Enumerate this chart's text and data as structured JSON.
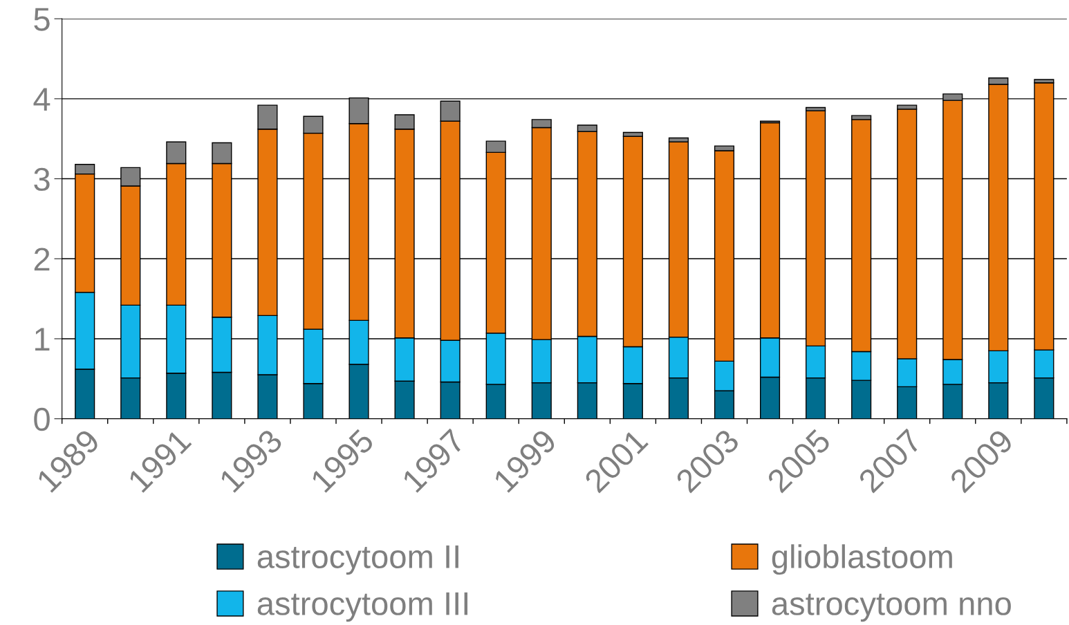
{
  "chart_data": {
    "type": "bar",
    "stacked": true,
    "categories": [
      "1989",
      null,
      "1991",
      null,
      "1993",
      null,
      "1995",
      null,
      "1997",
      null,
      "1999",
      null,
      "2001",
      null,
      "2003",
      null,
      "2005",
      null,
      "2007",
      null,
      "2009",
      null
    ],
    "series": [
      {
        "name": "astrocytoom II",
        "color": "#006d8f",
        "values": [
          0.62,
          0.51,
          0.57,
          0.58,
          0.55,
          0.44,
          0.68,
          0.47,
          0.46,
          0.43,
          0.45,
          0.45,
          0.44,
          0.51,
          0.35,
          0.52,
          0.51,
          0.48,
          0.4,
          0.43,
          0.45,
          0.51
        ]
      },
      {
        "name": "astrocytoom III",
        "color": "#12b5ea",
        "values": [
          0.96,
          0.91,
          0.85,
          0.69,
          0.74,
          0.68,
          0.55,
          0.54,
          0.52,
          0.64,
          0.54,
          0.58,
          0.46,
          0.51,
          0.37,
          0.49,
          0.4,
          0.36,
          0.35,
          0.31,
          0.4,
          0.35
        ]
      },
      {
        "name": "glioblastoom",
        "color": "#e8760c",
        "values": [
          1.48,
          1.49,
          1.77,
          1.92,
          2.33,
          2.45,
          2.46,
          2.61,
          2.74,
          2.26,
          2.65,
          2.56,
          2.63,
          2.44,
          2.63,
          2.69,
          2.94,
          2.9,
          3.12,
          3.24,
          3.33,
          3.34
        ]
      },
      {
        "name": "astrocytoom nno",
        "color": "#808080",
        "values": [
          0.12,
          0.23,
          0.27,
          0.26,
          0.3,
          0.21,
          0.32,
          0.18,
          0.25,
          0.14,
          0.1,
          0.08,
          0.05,
          0.05,
          0.06,
          0.02,
          0.04,
          0.05,
          0.05,
          0.08,
          0.08,
          0.04
        ]
      }
    ],
    "ylim": [
      0,
      5
    ],
    "yticks": [
      0,
      1,
      2,
      3,
      4,
      5
    ],
    "grid": "y",
    "legend": "bottom"
  }
}
